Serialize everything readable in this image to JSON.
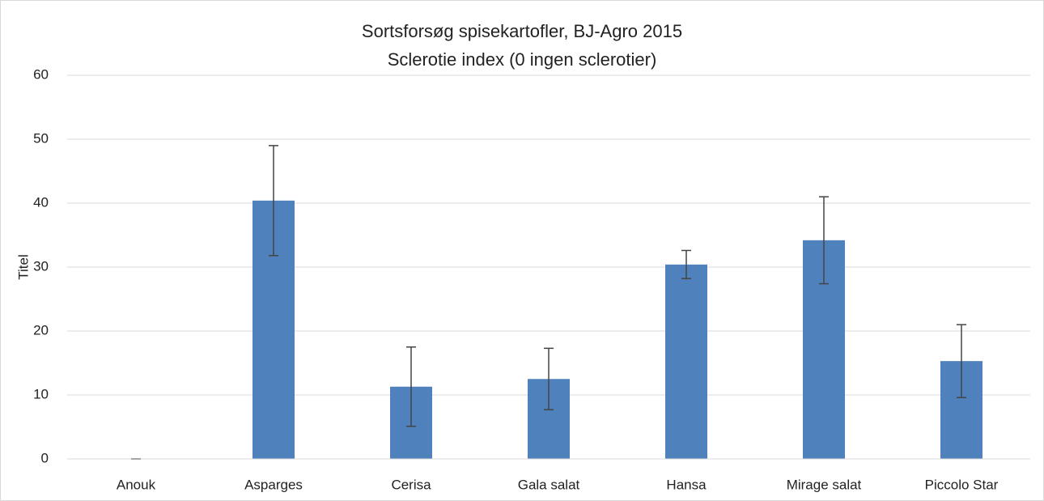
{
  "chart_data": {
    "type": "bar",
    "title": "Sortsforsøg spisekartofler, BJ-Agro 2015",
    "subtitle": "Sclerotie index (0 ingen sclerotier)",
    "y_label": "Titel",
    "categories": [
      "Anouk",
      "Asparges",
      "Cerisa",
      "Gala salat",
      "Hansa",
      "Mirage salat",
      "Piccolo Star"
    ],
    "values": [
      0,
      40.4,
      11.3,
      12.5,
      30.4,
      34.2,
      15.3
    ],
    "errors": [
      0,
      8.6,
      6.2,
      4.8,
      2.2,
      6.8,
      5.7
    ],
    "color": "#4f81bd",
    "ylim": [
      0,
      60
    ],
    "yticks": [
      0,
      10,
      20,
      30,
      40,
      50,
      60
    ],
    "grid": true
  }
}
